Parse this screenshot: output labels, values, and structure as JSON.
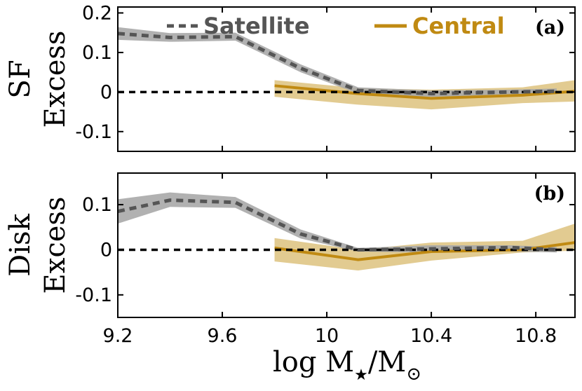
{
  "chart_data": [
    {
      "type": "line",
      "panel_label": "(a)",
      "ylabel_lines": [
        "SF",
        "Excess"
      ],
      "xlim": [
        9.2,
        10.95
      ],
      "ylim": [
        -0.15,
        0.215
      ],
      "yticks": [
        -0.1,
        0,
        0.1,
        0.2
      ],
      "ytick_labels": [
        "-0.1",
        "0",
        "0.1",
        "0.2"
      ],
      "reference_line": 0,
      "legend": [
        {
          "name": "Satellite",
          "color": "#555555",
          "style": "dashed"
        },
        {
          "name": "Central",
          "color": "#c08a12",
          "style": "solid"
        }
      ],
      "series": [
        {
          "name": "Satellite",
          "x": [
            9.2,
            9.4,
            9.65,
            9.9,
            10.12,
            10.4,
            10.7,
            10.88
          ],
          "y": [
            0.148,
            0.138,
            0.14,
            0.06,
            0.004,
            -0.004,
            0.0,
            0.002
          ],
          "lower": [
            0.132,
            0.127,
            0.13,
            0.05,
            -0.004,
            -0.012,
            -0.006,
            -0.005
          ],
          "upper": [
            0.164,
            0.149,
            0.15,
            0.07,
            0.012,
            0.004,
            0.006,
            0.009
          ]
        },
        {
          "name": "Central",
          "x": [
            9.8,
            10.12,
            10.4,
            10.75,
            10.95
          ],
          "y": [
            0.016,
            -0.004,
            -0.016,
            -0.008,
            0.002
          ],
          "lower": [
            -0.012,
            -0.032,
            -0.044,
            -0.028,
            -0.024
          ],
          "upper": [
            0.03,
            0.01,
            0.006,
            0.012,
            0.03
          ]
        }
      ]
    },
    {
      "type": "line",
      "panel_label": "(b)",
      "ylabel_lines": [
        "Disk",
        "Excess"
      ],
      "xlim": [
        9.2,
        10.95
      ],
      "ylim": [
        -0.15,
        0.17
      ],
      "yticks": [
        -0.1,
        0,
        0.1
      ],
      "ytick_labels": [
        "-0.1",
        "0",
        "0.1"
      ],
      "reference_line": 0,
      "series": [
        {
          "name": "Satellite",
          "x": [
            9.2,
            9.4,
            9.65,
            9.9,
            10.12,
            10.4,
            10.7,
            10.88
          ],
          "y": [
            0.085,
            0.11,
            0.105,
            0.035,
            0.0,
            0.002,
            0.005,
            0.0
          ],
          "lower": [
            0.058,
            0.095,
            0.093,
            0.025,
            -0.004,
            -0.006,
            -0.004,
            -0.006
          ],
          "upper": [
            0.112,
            0.127,
            0.117,
            0.045,
            0.004,
            0.01,
            0.01,
            0.006
          ]
        },
        {
          "name": "Central",
          "x": [
            9.8,
            10.12,
            10.4,
            10.75,
            10.95
          ],
          "y": [
            0.004,
            -0.022,
            -0.004,
            0.0,
            0.016
          ],
          "lower": [
            -0.026,
            -0.046,
            -0.024,
            -0.006,
            -0.002
          ],
          "upper": [
            0.026,
            0.0,
            0.016,
            0.02,
            0.058
          ]
        }
      ]
    }
  ],
  "x_axis": {
    "ticks": [
      9.2,
      9.6,
      10.0,
      10.4,
      10.8
    ],
    "tick_labels": [
      "9.2",
      "9.6",
      "10",
      "10.4",
      "10.8"
    ],
    "label_main": "log M",
    "label_sub1": "★",
    "label_mid": "/M",
    "label_sub2": "⊙"
  },
  "colors": {
    "satellite_line": "#555555",
    "satellite_band": "#a9a9a9",
    "central_line": "#c08a12",
    "central_band": "#ddc27e",
    "legend_satellite_text": "#555555",
    "legend_central_text": "#c08a12"
  }
}
